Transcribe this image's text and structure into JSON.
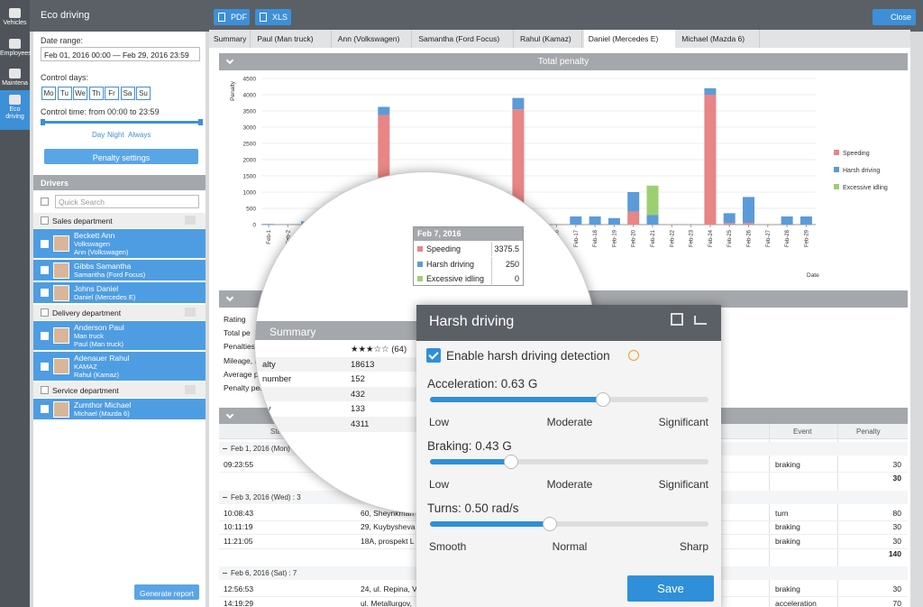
{
  "sidebar": [
    "Vehicles",
    "Employees",
    "Maintena",
    "Eco driving"
  ],
  "header": {
    "title": "Eco driving",
    "pdf": "PDF",
    "xls": "XLS",
    "close": "Close"
  },
  "filters": {
    "date_label": "Date range:",
    "date_value": "Feb 01, 2016 00:00 — Feb 29, 2016 23:59",
    "days_label": "Control days:",
    "days": [
      "Mo",
      "Tu",
      "We",
      "Th",
      "Fr",
      "Sa",
      "Su"
    ],
    "time_label": "Control time: from 00:00 to 23:59",
    "modes": [
      "Day",
      "Night",
      "Always"
    ],
    "penalty_button": "Penalty settings"
  },
  "drivers": {
    "title": "Drivers",
    "search": "Quick Search",
    "groups": [
      {
        "name": "Sales department",
        "drivers": [
          {
            "name": "Beckett Ann",
            "lines": [
              "Volkswagen",
              "Ann (Volkswagen)"
            ]
          },
          {
            "name": "Gibbs Samantha",
            "lines": [
              "Samantha (Ford Focus)"
            ]
          },
          {
            "name": "Johns Daniel",
            "lines": [
              "Daniel (Mercedes E)"
            ]
          }
        ]
      },
      {
        "name": "Delivery department",
        "drivers": [
          {
            "name": "Anderson Paul",
            "lines": [
              "Man truck",
              "Paul (Man truck)"
            ]
          },
          {
            "name": "Adenauer Rahul",
            "lines": [
              "KAMAZ",
              "Rahul (Kamaz)"
            ]
          }
        ]
      },
      {
        "name": "Service department",
        "drivers": [
          {
            "name": "Zumthor Michael",
            "lines": [
              "Michael (Mazda 6)"
            ]
          }
        ]
      }
    ],
    "generate": "Generate report"
  },
  "tabs": [
    "Summary",
    "Paul (Man truck)",
    "Ann (Volkswagen)",
    "Samantha (Ford Focus)",
    "Rahul (Kamaz)",
    "Daniel (Mercedes E)",
    "Michael (Mazda 6)"
  ],
  "chart_data": {
    "type": "bar",
    "stacked": true,
    "title": "Total penalty",
    "ylabel": "Penalty",
    "xlabel": "Date",
    "categories": [
      "Feb-1",
      "Feb-2",
      "Feb-3",
      "Feb-4",
      "Feb-5",
      "Feb-6",
      "Feb-7",
      "Feb-8",
      "Feb-9",
      "Feb-10",
      "Feb-11",
      "Feb-12",
      "Feb-13",
      "Feb-14",
      "Feb-15",
      "Feb-16",
      "Feb-17",
      "Feb-18",
      "Feb-19",
      "Feb-20",
      "Feb-21",
      "Feb-22",
      "Feb-23",
      "Feb-24",
      "Feb-25",
      "Feb-26",
      "Feb-27",
      "Feb-28",
      "Feb-29"
    ],
    "series": [
      {
        "name": "Speeding",
        "color": "#e88585",
        "values": [
          0,
          0,
          0,
          0,
          0,
          0,
          3375.5,
          0,
          0,
          0,
          0,
          0,
          0,
          3550,
          0,
          0,
          0,
          0,
          0,
          400,
          0,
          0,
          0,
          4000,
          50,
          50,
          0,
          0,
          0
        ]
      },
      {
        "name": "Harsh driving",
        "color": "#5b9bd9",
        "values": [
          20,
          10,
          100,
          0,
          0,
          0,
          250,
          0,
          0,
          0,
          0,
          0,
          0,
          350,
          50,
          0,
          250,
          250,
          200,
          600,
          300,
          0,
          0,
          200,
          300,
          800,
          0,
          250,
          250
        ]
      },
      {
        "name": "Excessive idling",
        "color": "#9ccf72",
        "values": [
          0,
          0,
          0,
          0,
          0,
          0,
          0,
          0,
          0,
          0,
          0,
          0,
          0,
          0,
          0,
          0,
          0,
          0,
          0,
          0,
          900,
          0,
          0,
          0,
          0,
          0,
          0,
          0,
          0
        ]
      }
    ],
    "ylim": [
      0,
      4500
    ],
    "yticks": [
      0,
      500,
      1000,
      1500,
      2000,
      2500,
      3000,
      3500,
      4000,
      4500
    ],
    "grid": true,
    "legend": "right"
  },
  "tooltip": {
    "title": "Feb 7, 2016",
    "rows": [
      {
        "name": "Speeding",
        "value": 3375.5
      },
      {
        "name": "Harsh driving",
        "value": 250
      },
      {
        "name": "Excessive idling",
        "value": 0
      }
    ]
  },
  "summary": {
    "labels": [
      "Rating",
      "Total pe",
      "Penalties",
      "Mileage, k",
      "Average pe",
      "Penalty per"
    ],
    "lens": {
      "title": "Summary",
      "rows": [
        {
          "value": "★★★☆☆ (64)"
        },
        {
          "label": "alty",
          "value": 18613
        },
        {
          "label": "number",
          "value": 152
        },
        {
          "value": 432
        },
        {
          "label": "ity",
          "value": 133
        },
        {
          "label": "m",
          "value": 4311
        }
      ]
    }
  },
  "table": {
    "columns": [
      "Start",
      "Event",
      "Penalty"
    ],
    "groups": [
      {
        "title": "Feb 1, 2016 (Mon) : 1",
        "rows": [
          {
            "time": "09:23:55",
            "event": "braking",
            "penalty": 30
          }
        ],
        "total": 30
      },
      {
        "title": "Feb 3, 2016 (Wed) : 3",
        "rows": [
          {
            "time": "10:08:43",
            "address": "60, Sheynkman",
            "event": "turn",
            "penalty": 80
          },
          {
            "time": "10:11:19",
            "address": "29, Kuybysheva",
            "event": "braking",
            "penalty": 30
          },
          {
            "time": "11:21:05",
            "address": "18A, prospekt L",
            "event": "braking",
            "penalty": 30
          }
        ],
        "total": 140
      },
      {
        "title": "Feb 6, 2016 (Sat) : 7",
        "rows": [
          {
            "time": "12:56:53",
            "address": "24, ul. Repina, V",
            "event": "braking",
            "penalty": 30
          },
          {
            "time": "14:19:29",
            "address": "ul. Metallurgov,",
            "event": "acceleration",
            "penalty": 70
          }
        ]
      }
    ]
  },
  "harsh": {
    "title": "Harsh driving",
    "enable": "Enable harsh driving detection",
    "sliders": [
      {
        "label": "Acceleration: 0.63 G",
        "scale": [
          "Low",
          "Moderate",
          "Significant"
        ]
      },
      {
        "label": "Braking: 0.43 G",
        "scale": [
          "Low",
          "Moderate",
          "Significant"
        ]
      },
      {
        "label": "Turns: 0.50 rad/s",
        "scale": [
          "Smooth",
          "Normal",
          "Sharp"
        ]
      }
    ],
    "save": "Save"
  }
}
